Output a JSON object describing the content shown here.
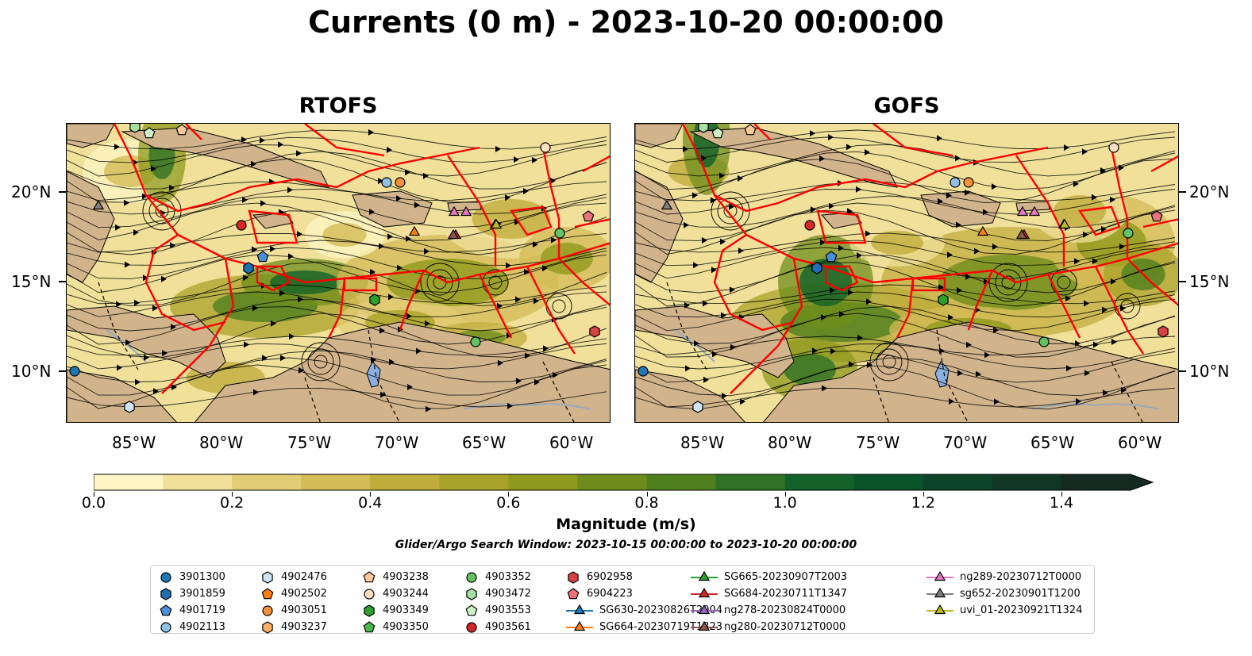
{
  "title": "Currents (0 m) - 2023-10-20 00:00:00",
  "panels": [
    {
      "name": "RTOFS"
    },
    {
      "name": "GOFS"
    }
  ],
  "lat_labels": [
    "20°N",
    "15°N",
    "10°N"
  ],
  "lon_labels": [
    "85°W",
    "80°W",
    "75°W",
    "70°W",
    "65°W",
    "60°W"
  ],
  "colorbar": {
    "label": "Magnitude (m/s)",
    "ticks": [
      "0.0",
      "0.2",
      "0.4",
      "0.6",
      "0.8",
      "1.0",
      "1.2",
      "1.4"
    ],
    "min": 0.0,
    "max": 1.5,
    "extend": "max",
    "colors": [
      "#fdf5c4",
      "#f0e09a",
      "#e2cd75",
      "#d3bb55",
      "#c1ad3c",
      "#a9a228",
      "#8e9a1c",
      "#6f8d1c",
      "#4f801e",
      "#2f7224",
      "#126229",
      "#0a532b",
      "#0d452a",
      "#113727",
      "#152a20"
    ]
  },
  "search_window": "Glider/Argo Search Window: 2023-10-15 00:00:00 to 2023-10-20 00:00:00",
  "colors": {
    "land": "#d2b48c",
    "lake": "#8ab0e0",
    "eez": "#ff0000"
  },
  "legend": {
    "columns": [
      [
        {
          "label": "3901300",
          "marker": "circle",
          "color": "#1f77b4"
        },
        {
          "label": "3901859",
          "marker": "hexagon",
          "color": "#1f6fb4"
        },
        {
          "label": "4901719",
          "marker": "pentagon",
          "color": "#4a90d9"
        },
        {
          "label": "4902113",
          "marker": "circle",
          "color": "#8fc1e8"
        }
      ],
      [
        {
          "label": "4902476",
          "marker": "hexagon",
          "color": "#cfe4f5"
        },
        {
          "label": "4902502",
          "marker": "pentagon",
          "color": "#ff7f0e"
        },
        {
          "label": "4903051",
          "marker": "circle",
          "color": "#f5913a"
        },
        {
          "label": "4903237",
          "marker": "hexagon",
          "color": "#ffb066"
        }
      ],
      [
        {
          "label": "4903238",
          "marker": "pentagon",
          "color": "#fcc99a"
        },
        {
          "label": "4903244",
          "marker": "circle",
          "color": "#fde0c2"
        },
        {
          "label": "4903349",
          "marker": "hexagon",
          "color": "#2ca02c"
        },
        {
          "label": "4903350",
          "marker": "pentagon",
          "color": "#49b84a"
        }
      ],
      [
        {
          "label": "4903352",
          "marker": "circle",
          "color": "#63c263"
        },
        {
          "label": "4903472",
          "marker": "hexagon",
          "color": "#a8e0a0"
        },
        {
          "label": "4903553",
          "marker": "pentagon",
          "color": "#cdf0c6"
        },
        {
          "label": "4903561",
          "marker": "circle",
          "color": "#d62728"
        }
      ],
      [
        {
          "label": "6902958",
          "marker": "hexagon",
          "color": "#d84345"
        },
        {
          "label": "6904223",
          "marker": "pentagon",
          "color": "#e8737a"
        },
        {
          "label": "SG630-20230826T2004",
          "marker": "triangle",
          "color": "#1f77b4",
          "line": true
        },
        {
          "label": "SG664-20230719T1323",
          "marker": "triangle",
          "color": "#ff7f0e",
          "line": true
        }
      ],
      [
        {
          "label": "SG665-20230907T2003",
          "marker": "triangle",
          "color": "#2ca02c",
          "line": true
        },
        {
          "label": "SG684-20230711T1347",
          "marker": "triangle",
          "color": "#d62728",
          "line": true
        },
        {
          "label": "ng278-20230824T0000",
          "marker": "triangle",
          "color": "#9467bd",
          "line": true
        },
        {
          "label": "ng280-20230712T0000",
          "marker": "triangle",
          "color": "#8c564b",
          "line": true
        }
      ],
      [
        {
          "label": "ng289-20230712T0000",
          "marker": "triangle",
          "color": "#e377c2",
          "line": true
        },
        {
          "label": "sg652-20230901T1200",
          "marker": "triangle",
          "color": "#7f7f7f",
          "line": true
        },
        {
          "label": "uvi_01-20230921T1324",
          "marker": "triangle",
          "color": "#bcbd22",
          "line": true
        }
      ]
    ]
  }
}
